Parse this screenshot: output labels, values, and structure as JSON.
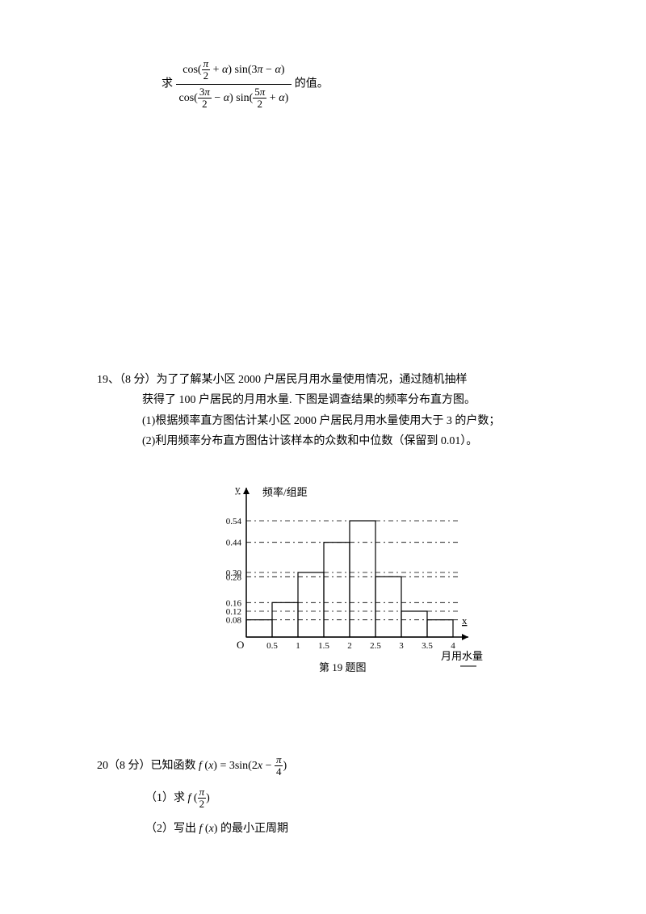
{
  "q18": {
    "prefix": "求",
    "suffix": "的值。"
  },
  "q19": {
    "number": "19、",
    "points": "（8 分）",
    "line1": "为了了解某小区 2000 户居民月用水量使用情况，通过随机抽样",
    "line2": "获得了 100 户居民的月用水量. 下图是调查结果的频率分布直方图。",
    "sub1": "(1)根据频率直方图估计某小区 2000 户居民月用水量使用大于 3 的户数；",
    "sub2": "(2)利用频率分布直方图估计该样本的众数和中位数（保留到 0.01）。",
    "chart": {
      "ylabel": "y",
      "ytitle": "频率/组距",
      "xlabel": "x",
      "xtitle": "月用水量",
      "yticks": [
        "0.08",
        "0.12",
        "0.16",
        "0.28",
        "0.30",
        "0.44",
        "0.54"
      ],
      "xticks": [
        "0.5",
        "1",
        "1.5",
        "2",
        "2.5",
        "3",
        "3.5",
        "4"
      ],
      "bars": [
        0.08,
        0.16,
        0.3,
        0.44,
        0.54,
        0.28,
        0.12,
        0.08
      ],
      "caption": "第 19 题图"
    }
  },
  "q20": {
    "number": "20",
    "points": "（8 分）",
    "stem": "已知函数 ",
    "sub1_label": "（1）求 ",
    "sub2_label": "（2）写出 ",
    "sub2_suffix": " 的最小正周期"
  }
}
